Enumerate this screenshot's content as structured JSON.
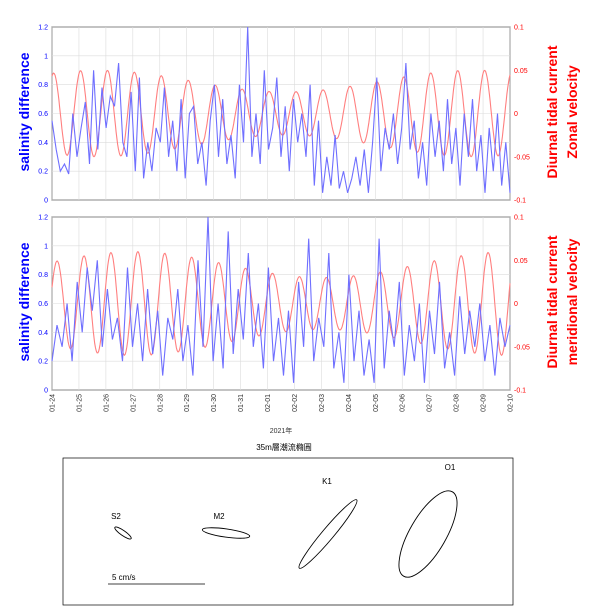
{
  "chart_data": [
    {
      "type": "line",
      "panel": "top",
      "left_axis": {
        "label": "salinity difference",
        "color": "#0000ff",
        "range": [
          0,
          1.2
        ],
        "ticks": [
          "0",
          "0.2",
          "0.4",
          "0.6",
          "0.8",
          "1",
          "1.2"
        ]
      },
      "right_axis": {
        "label_line1": "Diurnal tidal current",
        "label_line2": "Zonal velocity",
        "color": "#ff0000",
        "range": [
          -0.1,
          0.1
        ],
        "ticks": [
          "-0.1",
          "-0.05",
          "0",
          "0.05",
          "0.1"
        ]
      },
      "series": [
        {
          "axis": "left",
          "color": "#6f6fff",
          "values": [
            0.55,
            0.35,
            0.2,
            0.25,
            0.18,
            0.6,
            0.3,
            0.5,
            0.68,
            0.25,
            0.9,
            0.35,
            0.78,
            0.5,
            0.72,
            0.65,
            0.95,
            0.4,
            0.3,
            0.75,
            0.2,
            0.85,
            0.15,
            0.4,
            0.2,
            0.5,
            0.4,
            0.78,
            0.3,
            0.55,
            0.2,
            0.7,
            0.15,
            0.6,
            0.65,
            0.25,
            0.4,
            0.1,
            0.55,
            0.8,
            0.3,
            0.7,
            0.25,
            0.45,
            0.15,
            0.8,
            0.4,
            1.2,
            0.3,
            0.6,
            0.25,
            0.9,
            0.35,
            0.5,
            0.85,
            0.3,
            0.65,
            0.2,
            0.7,
            0.4,
            0.6,
            0.3,
            0.8,
            0.1,
            0.55,
            0.05,
            0.3,
            0.1,
            0.45,
            0.08,
            0.2,
            0.05,
            0.15,
            0.3,
            0.1,
            0.35,
            0.05,
            0.4,
            0.85,
            0.2,
            0.5,
            0.35,
            0.6,
            0.25,
            0.5,
            0.95,
            0.35,
            0.55,
            0.15,
            0.4,
            0.1,
            0.6,
            0.3,
            0.55,
            0.2,
            0.7,
            0.25,
            0.5,
            0.1,
            0.6,
            0.3,
            0.7,
            0.2,
            0.45,
            0.05,
            0.5,
            0.2,
            0.6,
            0.1,
            0.4,
            0.05
          ]
        },
        {
          "axis": "right",
          "color": "#ff7f7f",
          "period_days": 1.0,
          "amplitude": 0.05
        }
      ],
      "x_ticks": [
        "01-24",
        "01-25",
        "01-26",
        "01-27",
        "01-28",
        "01-29",
        "01-30",
        "01-31",
        "02-01",
        "02-02",
        "02-03",
        "02-04",
        "02-05",
        "02-06",
        "02-07",
        "02-08",
        "02-09",
        "02-10"
      ]
    },
    {
      "type": "line",
      "panel": "bottom",
      "left_axis": {
        "label": "salinity difference",
        "color": "#0000ff",
        "range": [
          0,
          1.2
        ],
        "ticks": [
          "0",
          "0.2",
          "0.4",
          "0.6",
          "0.8",
          "1",
          "1.2"
        ]
      },
      "right_axis": {
        "label_line1": "Diurnal tidal current",
        "label_line2": "meridional velocity",
        "color": "#ff0000",
        "range": [
          -0.1,
          0.1
        ],
        "ticks": [
          "-0.1",
          "-0.05",
          "0",
          "0.05",
          "0.1"
        ]
      },
      "series": [
        {
          "axis": "left",
          "color": "#6f6fff",
          "values": [
            0.2,
            0.45,
            0.3,
            0.6,
            0.2,
            0.75,
            0.4,
            0.85,
            0.55,
            0.9,
            0.3,
            0.7,
            0.35,
            0.5,
            0.2,
            0.85,
            0.3,
            0.6,
            0.2,
            0.7,
            0.25,
            0.55,
            0.1,
            0.5,
            0.35,
            0.7,
            0.2,
            0.45,
            0.1,
            0.9,
            0.3,
            1.2,
            0.2,
            0.6,
            0.15,
            1.1,
            0.25,
            0.7,
            0.35,
            0.95,
            0.3,
            0.6,
            0.15,
            0.85,
            0.2,
            0.5,
            0.1,
            0.55,
            0.05,
            0.75,
            0.3,
            1.05,
            0.2,
            0.5,
            0.3,
            0.95,
            0.15,
            0.4,
            0.05,
            0.8,
            0.2,
            0.55,
            0.1,
            0.35,
            0.05,
            1.05,
            0.15,
            0.55,
            0.3,
            0.75,
            0.1,
            0.45,
            0.2,
            0.6,
            0.05,
            0.55,
            0.25,
            0.75,
            0.15,
            0.4,
            0.1,
            0.65,
            0.25,
            0.55,
            0.3,
            0.6,
            0.2,
            0.45,
            0.1,
            0.5,
            0.3,
            0.45
          ]
        },
        {
          "axis": "right",
          "color": "#ff7f7f",
          "period_days": 1.0,
          "amplitude": 0.06
        }
      ],
      "x_ticks": [
        "01-24",
        "01-25",
        "01-26",
        "01-27",
        "01-28",
        "01-29",
        "01-30",
        "01-31",
        "02-01",
        "02-02",
        "02-03",
        "02-04",
        "02-05",
        "02-06",
        "02-07",
        "02-08",
        "02-09",
        "02-10"
      ],
      "xlabel": "2021年"
    },
    {
      "type": "ellipse",
      "panel": "tidal ellipses",
      "title": "35m層潮流橢圓",
      "ellipses": [
        {
          "name": "S2",
          "major": 0.6,
          "minor": 0.15,
          "angle_deg": 35
        },
        {
          "name": "M2",
          "major": 1.45,
          "minor": 0.25,
          "angle_deg": 8
        },
        {
          "name": "K1",
          "major": 2.7,
          "minor": 0.35,
          "angle_deg": -50
        },
        {
          "name": "O1",
          "major": 2.95,
          "minor": 1.1,
          "angle_deg": -60
        }
      ],
      "scale_label": "5 cm/s"
    }
  ]
}
